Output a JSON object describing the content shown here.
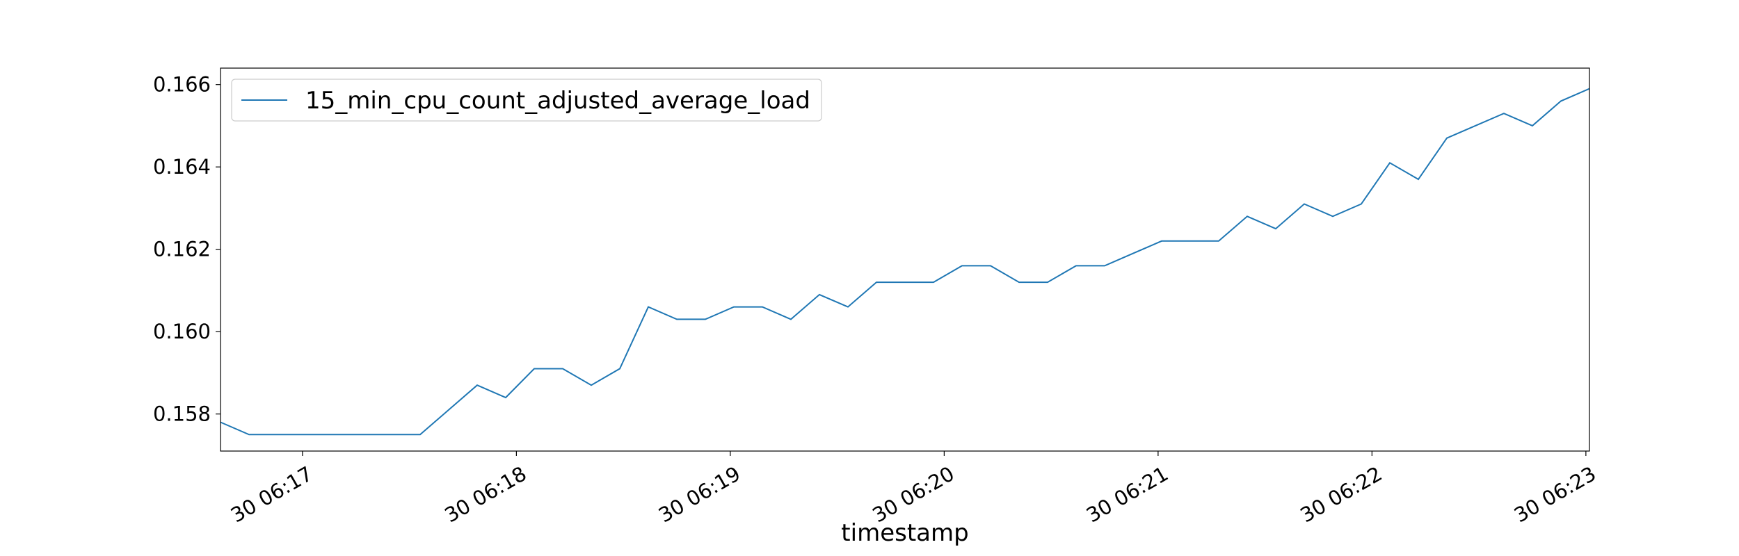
{
  "chart_data": {
    "type": "line",
    "title": "",
    "xlabel": "timestamp",
    "ylabel": "",
    "legend_position": "top-left",
    "grid": false,
    "line_color": "#1f77b4",
    "series": [
      {
        "name": "15_min_cpu_count_adjusted_average_load",
        "x": [
          "06:16:37",
          "06:16:45",
          "06:16:53",
          "06:17:01",
          "06:17:09",
          "06:17:17",
          "06:17:25",
          "06:17:33",
          "06:17:41",
          "06:17:49",
          "06:17:57",
          "06:18:05",
          "06:18:13",
          "06:18:21",
          "06:18:29",
          "06:18:37",
          "06:18:45",
          "06:18:53",
          "06:19:01",
          "06:19:09",
          "06:19:17",
          "06:19:25",
          "06:19:33",
          "06:19:41",
          "06:19:49",
          "06:19:57",
          "06:20:05",
          "06:20:13",
          "06:20:21",
          "06:20:29",
          "06:20:37",
          "06:20:45",
          "06:20:53",
          "06:21:01",
          "06:21:09",
          "06:21:17",
          "06:21:25",
          "06:21:33",
          "06:21:41",
          "06:21:49",
          "06:21:57",
          "06:22:05",
          "06:22:13",
          "06:22:21",
          "06:22:29",
          "06:22:37",
          "06:22:45",
          "06:22:53",
          "06:23:01"
        ],
        "values": [
          0.1578,
          0.1575,
          0.1575,
          0.1575,
          0.1575,
          0.1575,
          0.1575,
          0.1575,
          0.1581,
          0.1587,
          0.1584,
          0.1591,
          0.1591,
          0.1587,
          0.1591,
          0.1606,
          0.1603,
          0.1603,
          0.1606,
          0.1606,
          0.1603,
          0.1609,
          0.1606,
          0.1612,
          0.1612,
          0.1612,
          0.1616,
          0.1616,
          0.1612,
          0.1612,
          0.1616,
          0.1616,
          0.1619,
          0.1622,
          0.1622,
          0.1622,
          0.1628,
          0.1625,
          0.1631,
          0.1628,
          0.1631,
          0.1641,
          0.1637,
          0.1647,
          0.165,
          0.1653,
          0.165,
          0.1656,
          0.1659
        ]
      }
    ],
    "xlim": [
      "06:16:37",
      "06:23:01"
    ],
    "ylim": [
      0.1571,
      0.1664
    ],
    "yticks": [
      0.158,
      0.16,
      0.162,
      0.164,
      0.166
    ],
    "ytick_labels": [
      "0.158",
      "0.160",
      "0.162",
      "0.164",
      "0.166"
    ],
    "xticks": [
      "06:17:00",
      "06:18:00",
      "06:19:00",
      "06:20:00",
      "06:21:00",
      "06:22:00",
      "06:23:00"
    ],
    "xtick_labels": [
      "30 06:17",
      "30 06:18",
      "30 06:19",
      "30 06:20",
      "30 06:21",
      "30 06:22",
      "30 06:23"
    ]
  }
}
